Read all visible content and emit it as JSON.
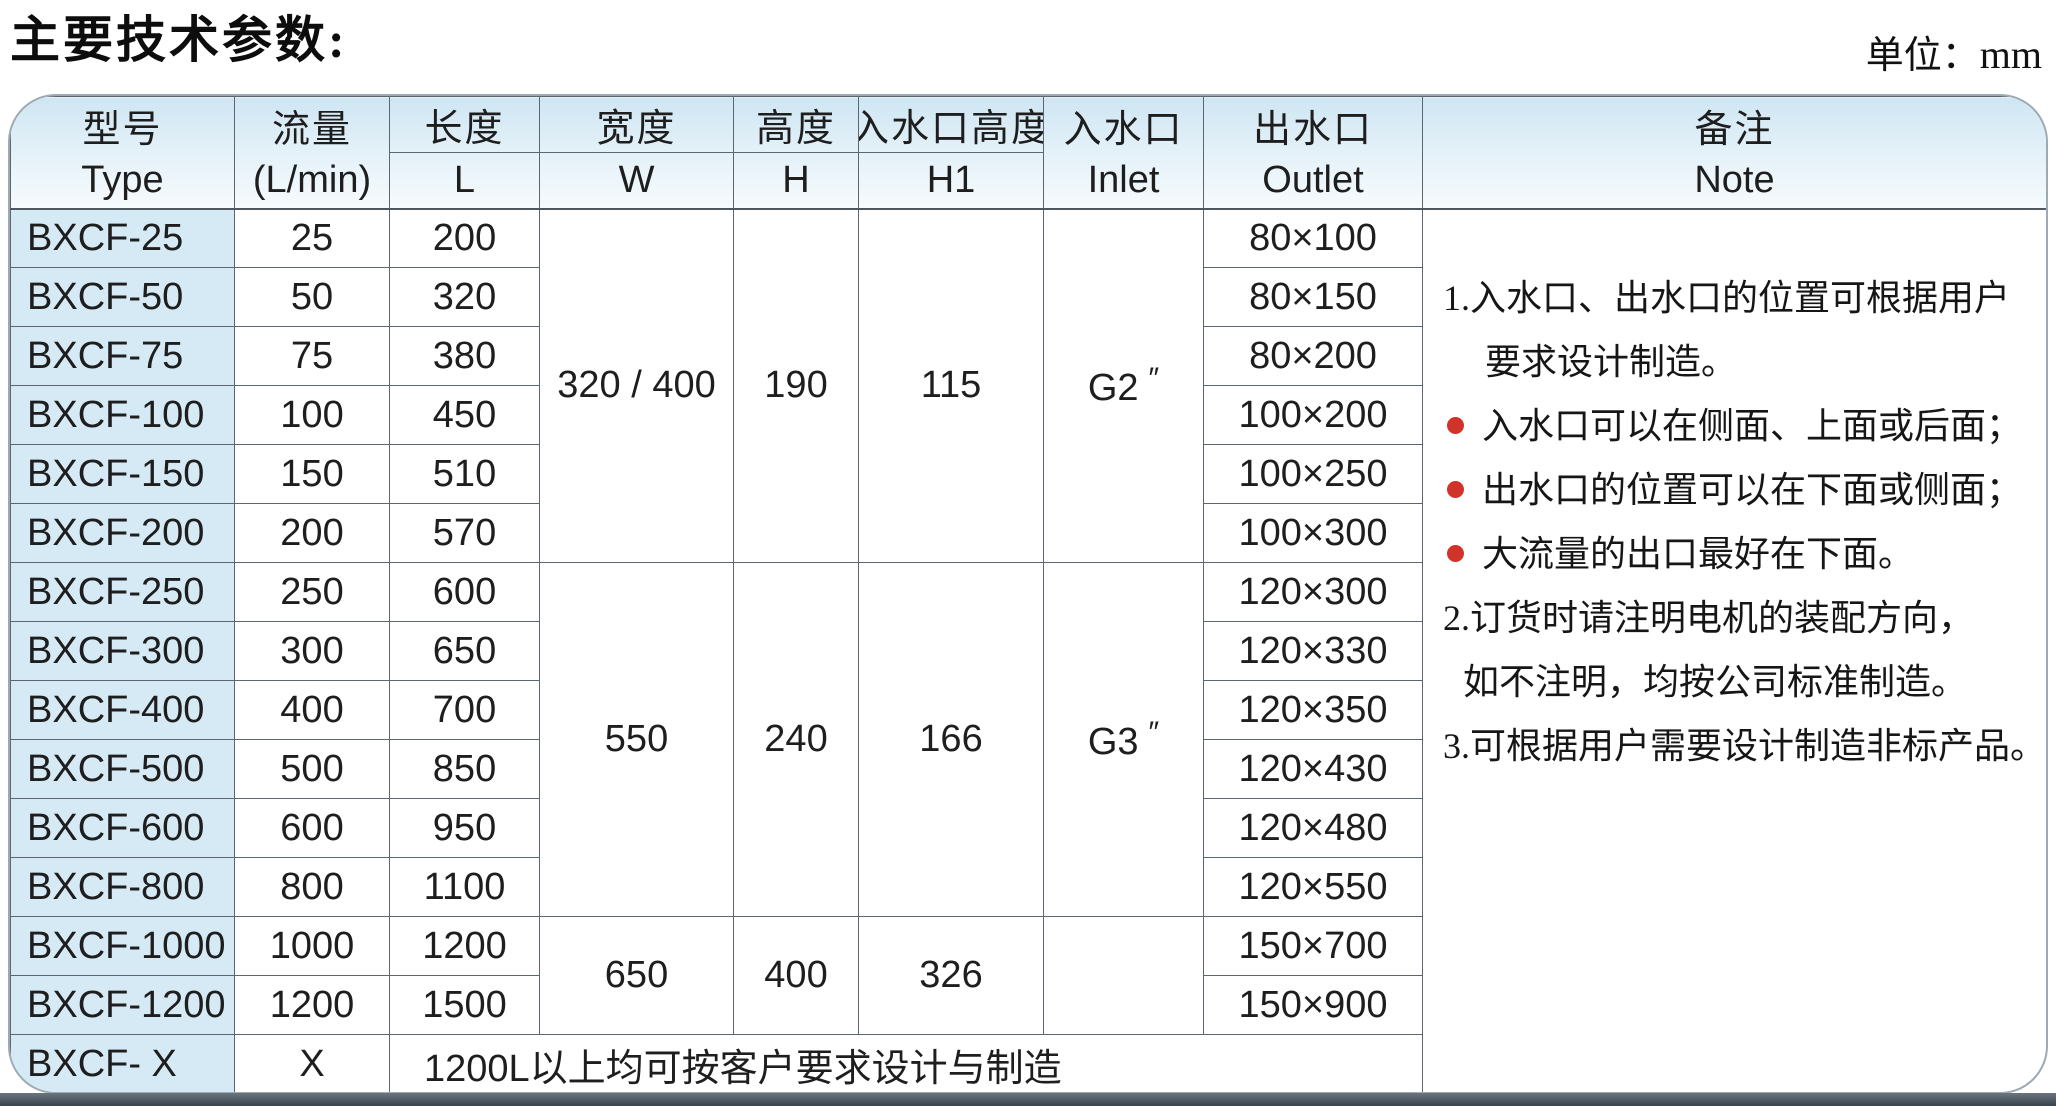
{
  "page": {
    "title": "主要技术参数:",
    "unit_label": "单位：",
    "unit_value": "mm"
  },
  "colors": {
    "header_blue_top": "#cfe6f3",
    "first_column_blue": "#d6eaf5",
    "bullet_red": "#d13329",
    "grid_line": "#5c6670",
    "bottom_band_dark": "#39434d"
  },
  "table": {
    "headers": {
      "type_zh": "型号",
      "type_en": "Type",
      "flow_zh": "流量",
      "flow_en": "(L/min)",
      "length_zh": "长度",
      "length_en": "L",
      "width_zh": "宽度",
      "width_en": "W",
      "height_zh": "高度",
      "height_en": "H",
      "inlet_height_zh": "入水口高度",
      "inlet_height_en": "H1",
      "inlet_zh": "入水口",
      "inlet_en": "Inlet",
      "outlet_zh": "出水口",
      "outlet_en": "Outlet",
      "note_zh": "备注",
      "note_en": "Note"
    },
    "rows": [
      {
        "type": "BXCF-25",
        "flow": "25",
        "length": "200",
        "outlet": "80×100"
      },
      {
        "type": "BXCF-50",
        "flow": "50",
        "length": "320",
        "outlet": "80×150"
      },
      {
        "type": "BXCF-75",
        "flow": "75",
        "length": "380",
        "outlet": "80×200"
      },
      {
        "type": "BXCF-100",
        "flow": "100",
        "length": "450",
        "outlet": "100×200"
      },
      {
        "type": "BXCF-150",
        "flow": "150",
        "length": "510",
        "outlet": "100×250"
      },
      {
        "type": "BXCF-200",
        "flow": "200",
        "length": "570",
        "outlet": "100×300"
      },
      {
        "type": "BXCF-250",
        "flow": "250",
        "length": "600",
        "outlet": "120×300"
      },
      {
        "type": "BXCF-300",
        "flow": "300",
        "length": "650",
        "outlet": "120×330"
      },
      {
        "type": "BXCF-400",
        "flow": "400",
        "length": "700",
        "outlet": "120×350"
      },
      {
        "type": "BXCF-500",
        "flow": "500",
        "length": "850",
        "outlet": "120×430"
      },
      {
        "type": "BXCF-600",
        "flow": "600",
        "length": "950",
        "outlet": "120×480"
      },
      {
        "type": "BXCF-800",
        "flow": "800",
        "length": "1100",
        "outlet": "120×550"
      },
      {
        "type": "BXCF-1000",
        "flow": "1000",
        "length": "1200",
        "outlet": "150×700"
      },
      {
        "type": "BXCF-1200",
        "flow": "1200",
        "length": "1500",
        "outlet": "150×900"
      },
      {
        "type": "BXCF- X",
        "flow": "X"
      }
    ],
    "groups": [
      {
        "width": "320 / 400",
        "height": "190",
        "inlet_height": "115",
        "inlet": "G2",
        "inlet_prime": "″"
      },
      {
        "width": "550",
        "height": "240",
        "inlet_height": "166",
        "inlet": "G3",
        "inlet_prime": "″"
      },
      {
        "width": "650",
        "height": "400",
        "inlet_height": "326",
        "inlet": "",
        "inlet_prime": ""
      }
    ],
    "custom_row_note": "1200L以上均可按客户要求设计与制造",
    "note_lines": [
      {
        "text": "1.入水口、出水口的位置可根据用户"
      },
      {
        "text": "要求设计制造。"
      },
      {
        "text": "入水口可以在侧面、上面或后面；"
      },
      {
        "text": "出水口的位置可以在下面或侧面；"
      },
      {
        "text": "大流量的出口最好在下面。"
      },
      {
        "text": "2.订货时请注明电机的装配方向，"
      },
      {
        "text": "如不注明，均按公司标准制造。"
      },
      {
        "text": "3.可根据用户需要设计制造非标产品。"
      }
    ]
  }
}
